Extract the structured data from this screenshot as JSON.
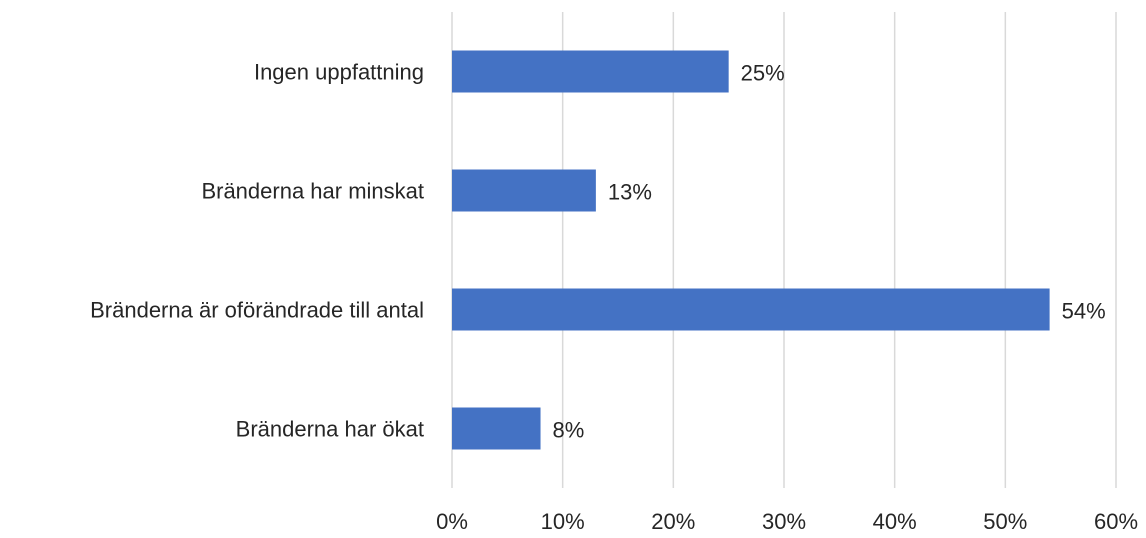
{
  "chart_data": {
    "type": "hbar",
    "categories": [
      "Ingen uppfattning",
      "Bränderna har minskat",
      "Bränderna är oförändrade till antal",
      "Bränderna har ökat"
    ],
    "values": [
      25,
      13,
      54,
      8
    ],
    "value_labels": [
      "25%",
      "13%",
      "54%",
      "8%"
    ],
    "color": "#4472c4",
    "xlim": [
      0,
      60
    ],
    "xticks": [
      {
        "value": 0,
        "label": "0%"
      },
      {
        "value": 10,
        "label": "10%"
      },
      {
        "value": 20,
        "label": "20%"
      },
      {
        "value": 30,
        "label": "30%"
      },
      {
        "value": 40,
        "label": "40%"
      },
      {
        "value": 50,
        "label": "50%"
      },
      {
        "value": 60,
        "label": "60%"
      }
    ],
    "grid": true
  }
}
